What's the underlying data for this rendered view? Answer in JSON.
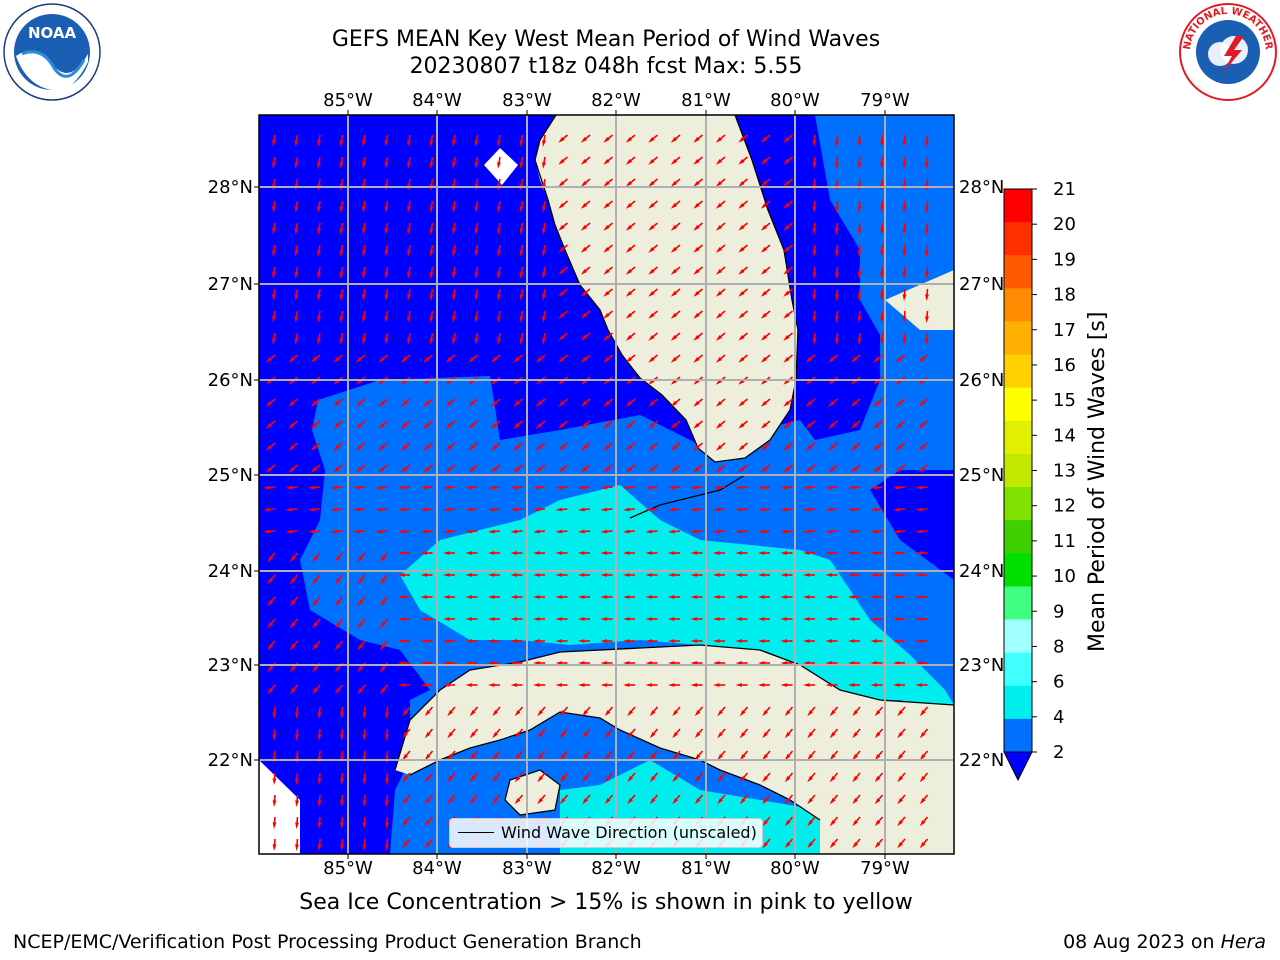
{
  "title_line1": "GEFS MEAN Key West Mean Period of Wind Waves",
  "title_line2": "20230807 t18z 048h fcst   Max: 5.55",
  "subnote": "Sea Ice Concentration > 15% is shown in pink to yellow",
  "footer_left": "NCEP/EMC/Verification Post Processing Product Generation Branch",
  "footer_right_date": "08 Aug 2023 on ",
  "footer_right_host": "Hera",
  "legend_label": "Wind Wave Direction (unscaled)",
  "colorbar": {
    "label": "Mean Period of Wind Waves [s]",
    "ticks": [
      "2",
      "4",
      "6",
      "8",
      "9",
      "10",
      "11",
      "12",
      "13",
      "14",
      "15",
      "16",
      "17",
      "18",
      "19",
      "20",
      "21"
    ],
    "colors": [
      "#0000ff",
      "#0070ff",
      "#00eeee",
      "#40ffff",
      "#a0ffff",
      "#40ff80",
      "#00e000",
      "#40d000",
      "#80e000",
      "#c0e800",
      "#e0f000",
      "#ffff00",
      "#ffd000",
      "#ffb000",
      "#ff8c00",
      "#ff5a00",
      "#ff3000",
      "#ff0000"
    ]
  },
  "lon_labels": [
    "85°W",
    "84°W",
    "83°W",
    "82°W",
    "81°W",
    "80°W",
    "79°W"
  ],
  "lat_labels": [
    "28°N",
    "27°N",
    "26°N",
    "25°N",
    "24°N",
    "23°N",
    "22°N"
  ],
  "logos": {
    "noaa": "NOAA",
    "nws_text": "NATIONAL WEATHER SERVICE"
  },
  "colors": {
    "land": "#eeeedd",
    "arrow": "#ff0000",
    "grid": "#b0b0b0",
    "band_2": "#0000ff",
    "band_4": "#0070ff",
    "band_6": "#00eeee",
    "noaa_blue": "#1a5fb4",
    "nws_red": "#e01b24"
  }
}
